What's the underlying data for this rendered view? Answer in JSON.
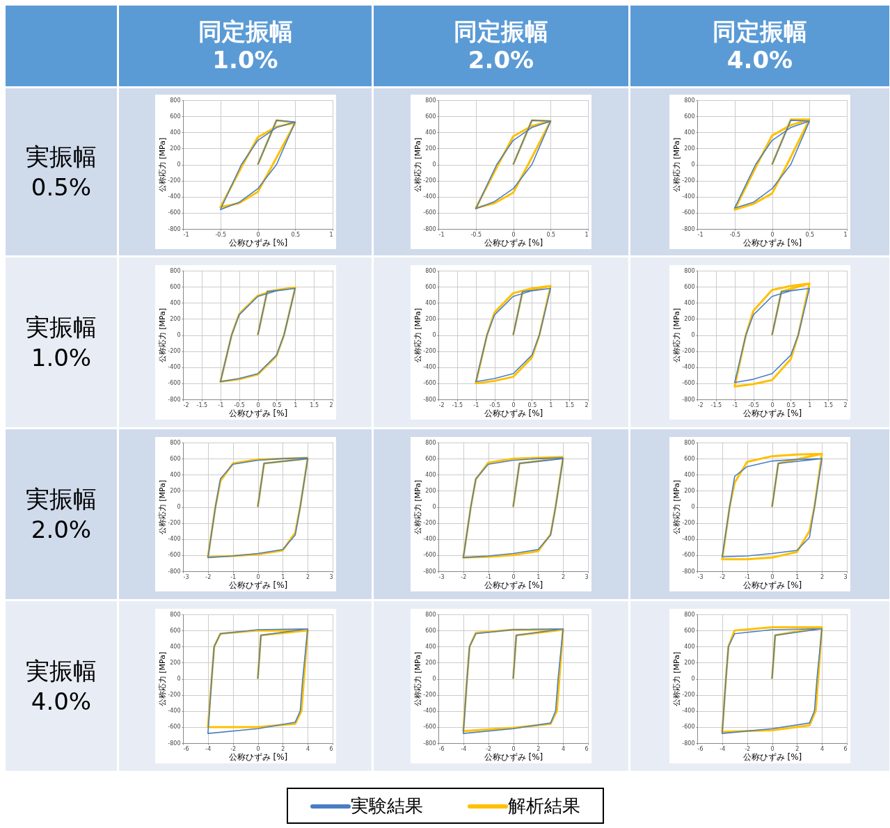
{
  "chart_data": [
    {
      "type": "line",
      "title": "同定振幅 1.0%",
      "annotations": [
        "実振幅 0.5%"
      ],
      "xlabel": "公称ひずみ [%]",
      "ylabel": "公称応力 [MPa]",
      "xlim": [
        -1,
        1
      ],
      "xticks": [
        -1,
        -0.5,
        0,
        0.5,
        1
      ],
      "ylim": [
        -800,
        800
      ],
      "yticks": [
        -800,
        -600,
        -400,
        -200,
        0,
        200,
        400,
        600,
        800
      ],
      "grid": true,
      "series": [
        {
          "color": "#4a7ec4",
          "x": [
            0,
            0.25,
            0.5,
            0.25,
            0,
            -0.25,
            -0.5,
            -0.22,
            0,
            0.25,
            0.5
          ],
          "values": [
            0,
            550,
            530,
            0,
            -300,
            -470,
            -560,
            0,
            300,
            460,
            530
          ]
        },
        {
          "color": "#ffc000",
          "x": [
            0,
            0.25,
            0.5,
            0.2,
            0,
            -0.25,
            -0.5,
            -0.2,
            0,
            0.25,
            0.5
          ],
          "values": [
            0,
            550,
            520,
            0,
            -340,
            -480,
            -530,
            0,
            340,
            470,
            520
          ]
        }
      ]
    },
    {
      "type": "line",
      "title": "同定振幅 2.0%",
      "xlabel": "公称ひずみ [%]",
      "ylabel": "公称応力 [MPa]",
      "xlim": [
        -1,
        1
      ],
      "xticks": [
        -1,
        -0.5,
        0,
        0.5,
        1
      ],
      "ylim": [
        -800,
        800
      ],
      "yticks": [
        -800,
        -600,
        -400,
        -200,
        0,
        200,
        400,
        600,
        800
      ],
      "grid": true,
      "series": [
        {
          "color": "#4a7ec4",
          "x": [
            0,
            0.25,
            0.5,
            0.25,
            0,
            -0.25,
            -0.5,
            -0.22,
            0,
            0.25,
            0.5
          ],
          "values": [
            0,
            550,
            540,
            0,
            -300,
            -460,
            -550,
            0,
            300,
            460,
            540
          ]
        },
        {
          "color": "#ffc000",
          "x": [
            0,
            0.25,
            0.5,
            0.2,
            0,
            -0.25,
            -0.5,
            -0.2,
            0,
            0.25,
            0.5
          ],
          "values": [
            0,
            550,
            540,
            0,
            -350,
            -480,
            -540,
            0,
            350,
            480,
            540
          ]
        }
      ]
    },
    {
      "type": "line",
      "title": "同定振幅 4.0%",
      "xlabel": "公称ひずみ [%]",
      "ylabel": "公称応力 [MPa]",
      "xlim": [
        -1,
        1
      ],
      "xticks": [
        -1,
        -0.5,
        0,
        0.5,
        1
      ],
      "ylim": [
        -800,
        800
      ],
      "yticks": [
        -800,
        -600,
        -400,
        -200,
        0,
        200,
        400,
        600,
        800
      ],
      "grid": true,
      "series": [
        {
          "color": "#4a7ec4",
          "x": [
            0,
            0.25,
            0.5,
            0.25,
            0,
            -0.25,
            -0.5,
            -0.22,
            0,
            0.25,
            0.5
          ],
          "values": [
            0,
            550,
            540,
            0,
            -300,
            -470,
            -540,
            0,
            300,
            460,
            540
          ]
        },
        {
          "color": "#ffc000",
          "x": [
            0,
            0.25,
            0.5,
            0.2,
            0,
            -0.25,
            -0.5,
            -0.2,
            0,
            0.25,
            0.5
          ],
          "values": [
            0,
            560,
            560,
            0,
            -360,
            -490,
            -560,
            0,
            360,
            490,
            560
          ]
        }
      ]
    },
    {
      "type": "line",
      "annotations": [
        "実振幅 1.0%"
      ],
      "xlabel": "公称ひずみ [%]",
      "ylabel": "公称応力 [MPa]",
      "xlim": [
        -2,
        2
      ],
      "xticks": [
        -2,
        -1.5,
        -1,
        -0.5,
        0,
        0.5,
        1,
        1.5,
        2
      ],
      "ylim": [
        -800,
        800
      ],
      "yticks": [
        -800,
        -600,
        -400,
        -200,
        0,
        200,
        400,
        600,
        800
      ],
      "grid": true,
      "series": [
        {
          "color": "#4a7ec4",
          "x": [
            0,
            0.25,
            1,
            0.7,
            0.5,
            0,
            -0.5,
            -1,
            -0.7,
            -0.5,
            0,
            0.5,
            1
          ],
          "values": [
            0,
            540,
            580,
            0,
            -250,
            -480,
            -540,
            -580,
            0,
            250,
            480,
            550,
            580
          ]
        },
        {
          "color": "#ffc000",
          "x": [
            0,
            0.25,
            1,
            0.7,
            0.5,
            0,
            -0.5,
            -1,
            -0.7,
            -0.5,
            0,
            0.5,
            1
          ],
          "values": [
            0,
            540,
            590,
            0,
            -260,
            -490,
            -550,
            -580,
            0,
            260,
            490,
            560,
            590
          ]
        }
      ]
    },
    {
      "type": "line",
      "xlabel": "公称ひずみ [%]",
      "ylabel": "公称応力 [MPa]",
      "xlim": [
        -2,
        2
      ],
      "xticks": [
        -2,
        -1.5,
        -1,
        -0.5,
        0,
        0.5,
        1,
        1.5,
        2
      ],
      "ylim": [
        -800,
        800
      ],
      "yticks": [
        -800,
        -600,
        -400,
        -200,
        0,
        200,
        400,
        600,
        800
      ],
      "grid": true,
      "series": [
        {
          "color": "#4a7ec4",
          "x": [
            0,
            0.25,
            1,
            0.7,
            0.5,
            0,
            -0.5,
            -1,
            -0.7,
            -0.5,
            0,
            0.5,
            1
          ],
          "values": [
            0,
            540,
            580,
            0,
            -250,
            -480,
            -540,
            -580,
            0,
            250,
            480,
            550,
            580
          ]
        },
        {
          "color": "#ffc000",
          "x": [
            0,
            0.25,
            1,
            0.7,
            0.5,
            0,
            -0.5,
            -1,
            -0.7,
            -0.5,
            0,
            0.5,
            1
          ],
          "values": [
            0,
            540,
            610,
            0,
            -280,
            -520,
            -570,
            -600,
            0,
            280,
            520,
            580,
            610
          ]
        }
      ]
    },
    {
      "type": "line",
      "xlabel": "公称ひずみ [%]",
      "ylabel": "公称応力 [MPa]",
      "xlim": [
        -2,
        2
      ],
      "xticks": [
        -2,
        -1.5,
        -1,
        -0.5,
        0,
        0.5,
        1,
        1.5,
        2
      ],
      "ylim": [
        -800,
        800
      ],
      "yticks": [
        -800,
        -600,
        -400,
        -200,
        0,
        200,
        400,
        600,
        800
      ],
      "grid": true,
      "series": [
        {
          "color": "#4a7ec4",
          "x": [
            0,
            0.25,
            1,
            0.7,
            0.5,
            0,
            -0.5,
            -1,
            -0.7,
            -0.5,
            0,
            0.5,
            1
          ],
          "values": [
            0,
            540,
            580,
            0,
            -250,
            -480,
            -550,
            -590,
            0,
            250,
            480,
            550,
            580
          ]
        },
        {
          "color": "#ffc000",
          "x": [
            0,
            0.25,
            1,
            0.7,
            0.5,
            0,
            -0.5,
            -1,
            -0.7,
            -0.5,
            0,
            0.5,
            1
          ],
          "values": [
            0,
            540,
            640,
            0,
            -300,
            -560,
            -610,
            -640,
            0,
            300,
            560,
            610,
            640
          ]
        }
      ]
    },
    {
      "type": "line",
      "annotations": [
        "実振幅 2.0%"
      ],
      "xlabel": "公称ひずみ [%]",
      "ylabel": "公称応力 [MPa]",
      "xlim": [
        -3,
        3
      ],
      "xticks": [
        -3,
        -2,
        -1,
        0,
        1,
        2,
        3
      ],
      "ylim": [
        -800,
        800
      ],
      "yticks": [
        -800,
        -600,
        -400,
        -200,
        0,
        200,
        400,
        600,
        800
      ],
      "grid": true,
      "series": [
        {
          "color": "#4a7ec4",
          "x": [
            0,
            0.25,
            2,
            1.7,
            1.5,
            1,
            0,
            -1,
            -2,
            -1.7,
            -1.5,
            -1,
            0,
            1,
            2
          ],
          "values": [
            0,
            540,
            600,
            0,
            -350,
            -530,
            -580,
            -610,
            -630,
            0,
            350,
            530,
            580,
            600,
            610
          ]
        },
        {
          "color": "#ffc000",
          "x": [
            0,
            0.25,
            2,
            1.7,
            1.5,
            1,
            0,
            -1,
            -2,
            -1.7,
            -1.5,
            -1,
            0,
            1,
            2
          ],
          "values": [
            0,
            540,
            600,
            0,
            -320,
            -540,
            -590,
            -610,
            -620,
            0,
            320,
            540,
            590,
            600,
            610
          ]
        }
      ]
    },
    {
      "type": "line",
      "xlabel": "公称ひずみ [%]",
      "ylabel": "公称応力 [MPa]",
      "xlim": [
        -3,
        3
      ],
      "xticks": [
        -3,
        -2,
        -1,
        0,
        1,
        2,
        3
      ],
      "ylim": [
        -800,
        800
      ],
      "yticks": [
        -800,
        -600,
        -400,
        -200,
        0,
        200,
        400,
        600,
        800
      ],
      "grid": true,
      "series": [
        {
          "color": "#4a7ec4",
          "x": [
            0,
            0.25,
            2,
            1.7,
            1.5,
            1,
            0,
            -1,
            -2,
            -1.7,
            -1.5,
            -1,
            0,
            1,
            2
          ],
          "values": [
            0,
            540,
            600,
            0,
            -350,
            -530,
            -580,
            -610,
            -630,
            0,
            350,
            530,
            580,
            600,
            610
          ]
        },
        {
          "color": "#ffc000",
          "x": [
            0,
            0.25,
            2,
            1.7,
            1.5,
            1,
            0,
            -1,
            -2,
            -1.7,
            -1.5,
            -1,
            0,
            1,
            2
          ],
          "values": [
            0,
            540,
            610,
            0,
            -340,
            -550,
            -600,
            -620,
            -630,
            0,
            340,
            550,
            600,
            610,
            620
          ]
        }
      ]
    },
    {
      "type": "line",
      "xlabel": "公称ひずみ [%]",
      "ylabel": "公称応力 [MPa]",
      "xlim": [
        -3,
        3
      ],
      "xticks": [
        -3,
        -2,
        -1,
        0,
        1,
        2,
        3
      ],
      "ylim": [
        -800,
        800
      ],
      "yticks": [
        -800,
        -600,
        -400,
        -200,
        0,
        200,
        400,
        600,
        800
      ],
      "grid": true,
      "series": [
        {
          "color": "#4a7ec4",
          "x": [
            0,
            0.25,
            2,
            1.7,
            1.5,
            1,
            0,
            -1,
            -2,
            -1.7,
            -1.5,
            -1,
            0,
            1,
            2
          ],
          "values": [
            0,
            540,
            600,
            0,
            -380,
            -540,
            -580,
            -610,
            -620,
            0,
            380,
            500,
            570,
            590,
            600
          ]
        },
        {
          "color": "#ffc000",
          "x": [
            0,
            0.25,
            2,
            1.7,
            1.5,
            1,
            0,
            -1,
            -2,
            -1.7,
            -1.5,
            -1,
            0,
            1,
            2
          ],
          "values": [
            0,
            540,
            660,
            0,
            -300,
            -560,
            -630,
            -650,
            -650,
            0,
            300,
            560,
            630,
            650,
            660
          ]
        }
      ]
    },
    {
      "type": "line",
      "annotations": [
        "実振幅 4.0%"
      ],
      "xlabel": "公称ひずみ [%]",
      "ylabel": "公称応力 [MPa]",
      "xlim": [
        -6,
        6
      ],
      "xticks": [
        -6,
        -4,
        -2,
        0,
        2,
        4,
        6
      ],
      "ylim": [
        -800,
        800
      ],
      "yticks": [
        -800,
        -600,
        -400,
        -200,
        0,
        200,
        400,
        600,
        800
      ],
      "grid": true,
      "series": [
        {
          "color": "#4a7ec4",
          "x": [
            0,
            0.25,
            4,
            3.6,
            3.4,
            3,
            0,
            -4,
            -3.7,
            -3.5,
            -3,
            0,
            4
          ],
          "values": [
            0,
            540,
            620,
            0,
            -400,
            -540,
            -620,
            -680,
            0,
            400,
            560,
            610,
            620
          ]
        },
        {
          "color": "#ffc000",
          "x": [
            0,
            0.25,
            4,
            3.7,
            3.5,
            3,
            0,
            -4,
            -3.7,
            -3.5,
            -3,
            0,
            4
          ],
          "values": [
            0,
            540,
            600,
            0,
            -400,
            -560,
            -600,
            -600,
            0,
            400,
            560,
            600,
            600
          ]
        }
      ]
    },
    {
      "type": "line",
      "xlabel": "公称ひずみ [%]",
      "ylabel": "公称応力 [MPa]",
      "xlim": [
        -6,
        6
      ],
      "xticks": [
        -6,
        -4,
        -2,
        0,
        2,
        4,
        6
      ],
      "ylim": [
        -800,
        800
      ],
      "yticks": [
        -800,
        -600,
        -400,
        -200,
        0,
        200,
        400,
        600,
        800
      ],
      "grid": true,
      "series": [
        {
          "color": "#4a7ec4",
          "x": [
            0,
            0.25,
            4,
            3.6,
            3.4,
            3,
            0,
            -4,
            -3.7,
            -3.5,
            -3,
            0,
            4
          ],
          "values": [
            0,
            540,
            620,
            0,
            -400,
            -550,
            -620,
            -680,
            0,
            400,
            560,
            610,
            620
          ]
        },
        {
          "color": "#ffc000",
          "x": [
            0,
            0.25,
            4,
            3.7,
            3.5,
            3,
            0,
            -4,
            -3.7,
            -3.5,
            -3,
            0,
            4
          ],
          "values": [
            0,
            540,
            610,
            0,
            -400,
            -560,
            -610,
            -650,
            0,
            400,
            570,
            610,
            610
          ]
        }
      ]
    },
    {
      "type": "line",
      "xlabel": "公称ひずみ [%]",
      "ylabel": "公称応力 [MPa]",
      "xlim": [
        -6,
        6
      ],
      "xticks": [
        -6,
        -4,
        -2,
        0,
        2,
        4,
        6
      ],
      "ylim": [
        -800,
        800
      ],
      "yticks": [
        -800,
        -600,
        -400,
        -200,
        0,
        200,
        400,
        600,
        800
      ],
      "grid": true,
      "legend": "bottom",
      "series": [
        {
          "name": "実験結果",
          "color": "#4a7ec4",
          "x": [
            0,
            0.25,
            4,
            3.6,
            3.4,
            3,
            0,
            -4,
            -3.7,
            -3.5,
            -3,
            0,
            4
          ],
          "values": [
            0,
            540,
            620,
            0,
            -400,
            -550,
            -620,
            -680,
            0,
            400,
            560,
            610,
            620
          ]
        },
        {
          "name": "解析結果",
          "color": "#ffc000",
          "x": [
            0,
            0.25,
            4,
            3.7,
            3.5,
            3,
            0,
            -4,
            -3.7,
            -3.5,
            -3,
            0,
            4
          ],
          "values": [
            0,
            540,
            640,
            0,
            -400,
            -580,
            -640,
            -660,
            0,
            400,
            600,
            640,
            640
          ]
        }
      ]
    }
  ]
}
